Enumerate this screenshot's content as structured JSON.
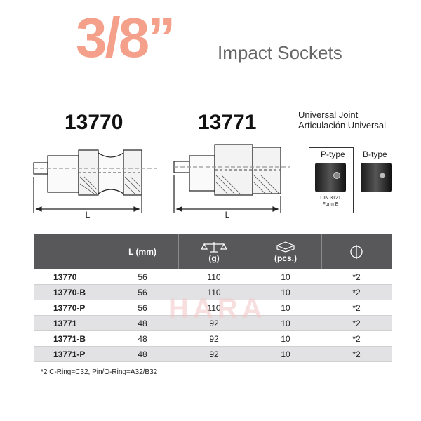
{
  "heading": {
    "size": "3/8”",
    "subtitle": "Impact Sockets"
  },
  "models": [
    "13770",
    "13771"
  ],
  "joint": {
    "en": "Universal Joint",
    "es": "Articulación Universal"
  },
  "types": {
    "p": "P-type",
    "b": "B-type",
    "p_note": [
      "DIN 3121",
      "Form E"
    ]
  },
  "dimension_label": "L",
  "table": {
    "headers": [
      {
        "label": "",
        "icon": ""
      },
      {
        "label": "L (mm)",
        "icon": ""
      },
      {
        "label": "(g)",
        "icon": "scale-icon"
      },
      {
        "label": "(pcs.)",
        "icon": "box-icon"
      },
      {
        "label": "",
        "icon": "ring-pin-icon"
      }
    ],
    "rows": [
      [
        "13770",
        "56",
        "110",
        "10",
        "*2"
      ],
      [
        "13770-B",
        "56",
        "110",
        "10",
        "*2"
      ],
      [
        "13770-P",
        "56",
        "110",
        "10",
        "*2"
      ],
      [
        "13771",
        "48",
        "92",
        "10",
        "*2"
      ],
      [
        "13771-B",
        "48",
        "92",
        "10",
        "*2"
      ],
      [
        "13771-P",
        "48",
        "92",
        "10",
        "*2"
      ]
    ]
  },
  "footnote": "*2 C-Ring=C32, Pin/O-Ring=A32/B32",
  "watermark": "HARA"
}
